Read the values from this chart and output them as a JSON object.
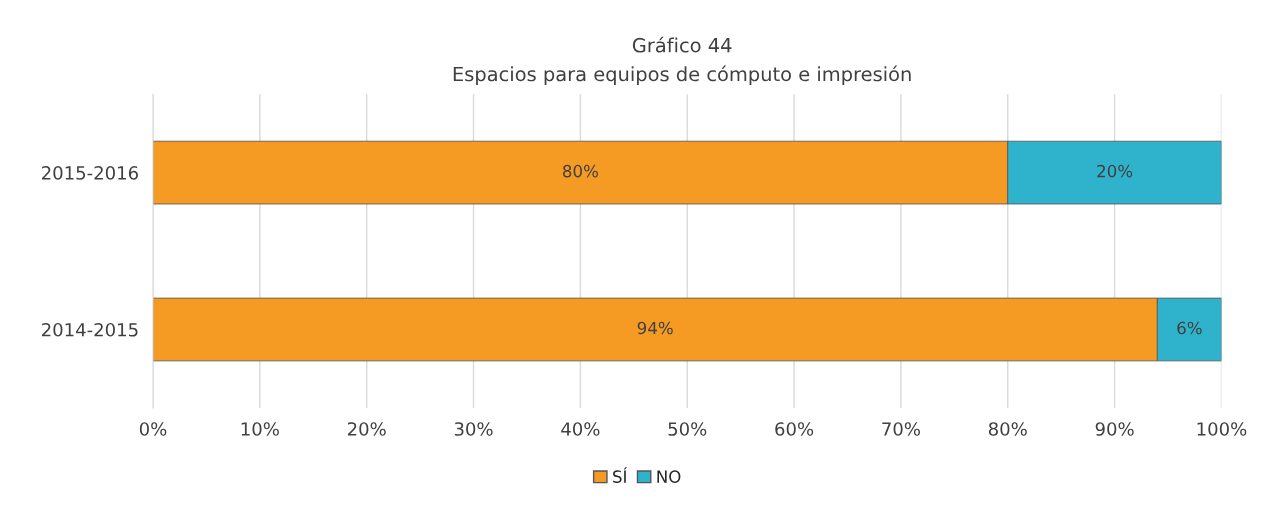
{
  "chart_data": {
    "type": "bar",
    "orientation": "horizontal",
    "stacked": true,
    "title": "Gráfico 44",
    "subtitle": "Espacios para equipos de cómputo e impresión",
    "categories": [
      "2015-2016",
      "2014-2015"
    ],
    "series": [
      {
        "name": "SÍ",
        "color": "#f59a23",
        "values": [
          80,
          94
        ],
        "value_labels": [
          "80%",
          "94%"
        ]
      },
      {
        "name": "NO",
        "color": "#2fb3cc",
        "values": [
          20,
          6
        ],
        "value_labels": [
          "20%",
          "6%"
        ]
      }
    ],
    "xlim": [
      0,
      100
    ],
    "xticks": [
      {
        "value": 0,
        "label": "0%"
      },
      {
        "value": 10,
        "label": "10%"
      },
      {
        "value": 20,
        "label": "20%"
      },
      {
        "value": 30,
        "label": "30%"
      },
      {
        "value": 40,
        "label": "40%"
      },
      {
        "value": 50,
        "label": "50%"
      },
      {
        "value": 60,
        "label": "60%"
      },
      {
        "value": 70,
        "label": "70%"
      },
      {
        "value": 80,
        "label": "80%"
      },
      {
        "value": 90,
        "label": "90%"
      },
      {
        "value": 100,
        "label": "100%"
      }
    ],
    "grid": "x",
    "legend": "bottom"
  }
}
